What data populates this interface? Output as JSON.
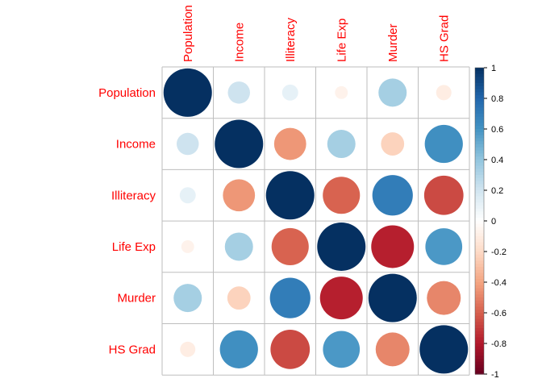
{
  "chart_data": {
    "type": "heatmap",
    "subtype": "correlation-circle-matrix",
    "variables": [
      "Population",
      "Income",
      "Illiteracy",
      "Life Exp",
      "Murder",
      "HS Grad"
    ],
    "matrix": [
      [
        1.0,
        0.21,
        0.11,
        -0.07,
        0.34,
        -0.1
      ],
      [
        0.21,
        1.0,
        -0.44,
        0.34,
        -0.23,
        0.62
      ],
      [
        0.11,
        -0.44,
        1.0,
        -0.59,
        0.7,
        -0.66
      ],
      [
        -0.07,
        0.34,
        -0.59,
        1.0,
        -0.78,
        0.58
      ],
      [
        0.34,
        -0.23,
        0.7,
        -0.78,
        1.0,
        -0.49
      ],
      [
        -0.1,
        0.62,
        -0.66,
        0.58,
        -0.49,
        1.0
      ]
    ],
    "colorbar": {
      "range": [
        -1,
        1
      ],
      "ticks": [
        "1",
        "0.8",
        "0.6",
        "0.4",
        "0.2",
        "0",
        "-0.2",
        "-0.4",
        "-0.6",
        "-0.8",
        "-1"
      ]
    },
    "colors": {
      "negative_end": "#67001F",
      "neutral": "#FFFFFF",
      "positive_end": "#053061",
      "label": "#FF0000",
      "grid": "#BEBEBE"
    },
    "legend_placement": "right",
    "grid": true
  }
}
